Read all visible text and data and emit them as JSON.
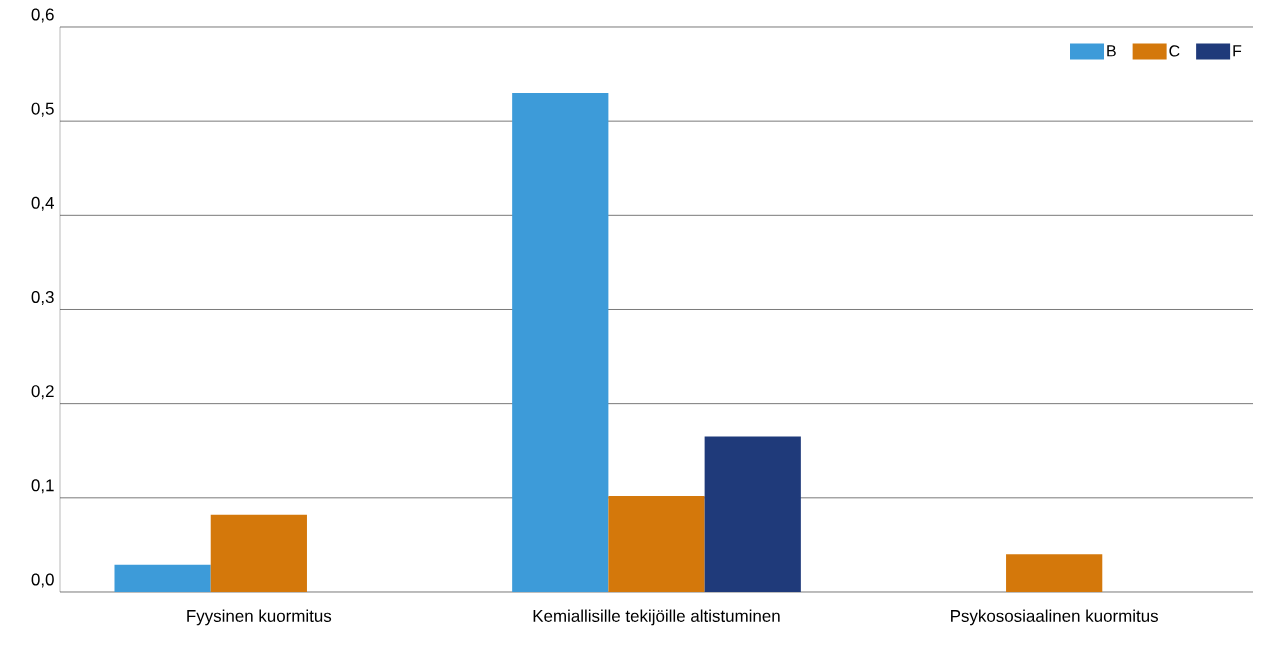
{
  "chart_data": {
    "type": "bar",
    "categories": [
      "Fyysinen kuormitus",
      "Kemiallisille tekijöille altistuminen",
      "Psykososiaalinen kuormitus"
    ],
    "series": [
      {
        "name": "B",
        "color": "#3d9bd9",
        "values": [
          0.029,
          0.53,
          0
        ]
      },
      {
        "name": "C",
        "color": "#d4780b",
        "values": [
          0.082,
          0.102,
          0.04
        ]
      },
      {
        "name": "F",
        "color": "#1f3a7a",
        "values": [
          0,
          0.165,
          0
        ]
      }
    ],
    "ylim": [
      0,
      0.6
    ],
    "yticks": [
      {
        "value": 0,
        "label": "0,0"
      },
      {
        "value": 0.1,
        "label": "0,1"
      },
      {
        "value": 0.2,
        "label": "0,2"
      },
      {
        "value": 0.3,
        "label": "0,3"
      },
      {
        "value": 0.4,
        "label": "0,4"
      },
      {
        "value": 0.5,
        "label": "0,5"
      },
      {
        "value": 0.6,
        "label": "0,6"
      }
    ],
    "grid": "y",
    "legend": "top right"
  }
}
